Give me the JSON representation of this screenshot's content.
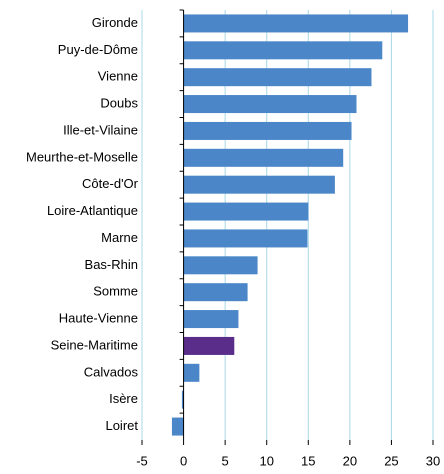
{
  "chart_data": {
    "type": "bar",
    "orientation": "horizontal",
    "categories": [
      "Gironde",
      "Puy-de-Dôme",
      "Vienne",
      "Doubs",
      "Ille-et-Vilaine",
      "Meurthe-et-Moselle",
      "Côte-d'Or",
      "Loire-Atlantique",
      "Marne",
      "Bas-Rhin",
      "Somme",
      "Haute-Vienne",
      "Seine-Maritime",
      "Calvados",
      "Isère",
      "Loiret"
    ],
    "values": [
      27.0,
      23.9,
      22.6,
      20.8,
      20.2,
      19.2,
      18.2,
      15.0,
      14.9,
      8.9,
      7.7,
      6.6,
      6.1,
      1.9,
      -0.2,
      -1.4
    ],
    "colors": [
      "#4a86c8",
      "#4a86c8",
      "#4a86c8",
      "#4a86c8",
      "#4a86c8",
      "#4a86c8",
      "#4a86c8",
      "#4a86c8",
      "#4a86c8",
      "#4a86c8",
      "#4a86c8",
      "#4a86c8",
      "#5b2d8a",
      "#4a86c8",
      "#4a86c8",
      "#4a86c8"
    ],
    "xlim": [
      -5,
      30
    ],
    "xticks": [
      -5,
      0,
      5,
      10,
      15,
      20,
      25,
      30
    ],
    "grid": true
  }
}
